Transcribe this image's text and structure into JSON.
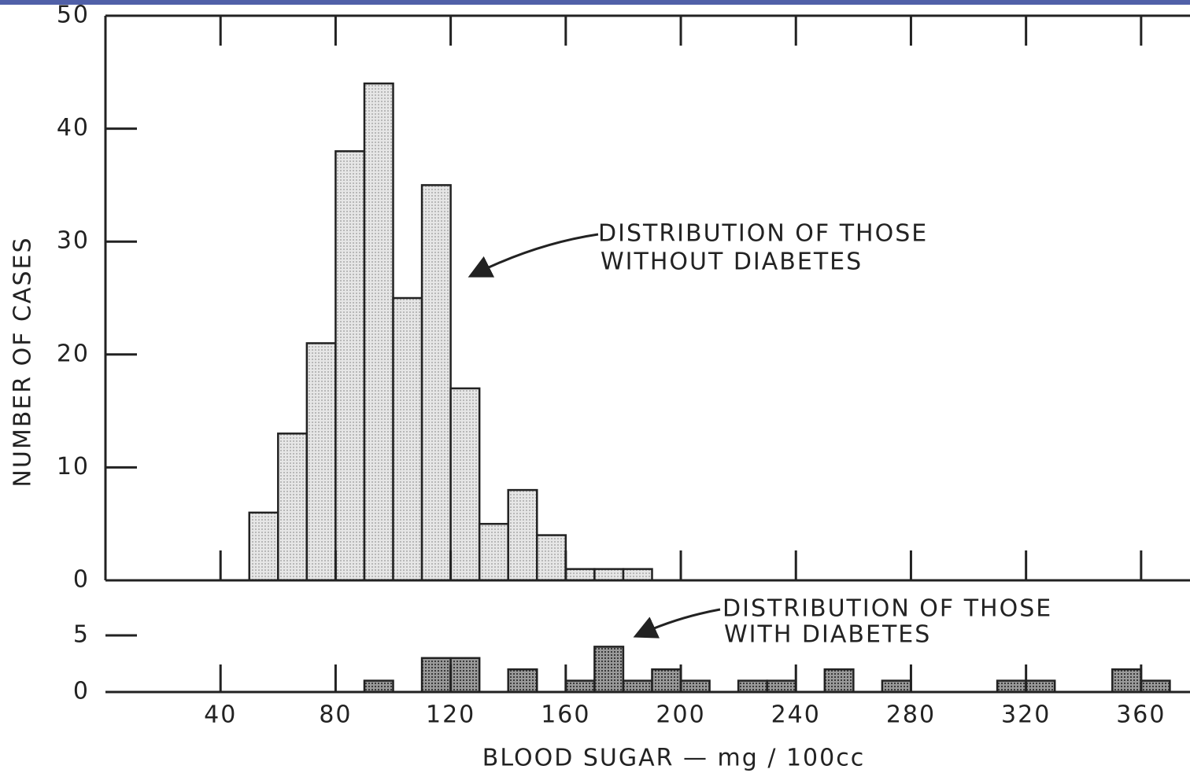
{
  "chart_data": [
    {
      "type": "histogram",
      "ylabel": "NUMBER OF CASES",
      "annotation": [
        "DISTRIBUTION OF THOSE",
        "WITHOUT DIABETES"
      ],
      "bins": [
        50,
        60,
        70,
        80,
        90,
        100,
        110,
        120,
        130,
        140,
        150,
        160,
        170,
        180,
        190
      ],
      "values": [
        6,
        13,
        21,
        38,
        44,
        25,
        35,
        17,
        5,
        8,
        4,
        1,
        1,
        1
      ],
      "color": "#d8d8d8",
      "xlim": [
        0,
        377
      ],
      "ylim": [
        0,
        50
      ],
      "yticks": [
        0,
        10,
        20,
        30,
        40,
        50
      ]
    },
    {
      "type": "histogram",
      "xlabel": "BLOOD SUGAR — mg / 100cc",
      "annotation": [
        "DISTRIBUTION OF THOSE",
        "WITH DIABETES"
      ],
      "bins": [
        50,
        60,
        70,
        80,
        90,
        100,
        110,
        120,
        130,
        140,
        150,
        160,
        170,
        180,
        190,
        200,
        210,
        220,
        230,
        240,
        250,
        260,
        270,
        280,
        290,
        300,
        310,
        320,
        330,
        340,
        350,
        360,
        370
      ],
      "values": [
        0,
        0,
        0,
        0,
        1,
        0,
        3,
        3,
        0,
        2,
        0,
        1,
        4,
        1,
        2,
        1,
        0,
        1,
        1,
        0,
        2,
        0,
        1,
        0,
        0,
        0,
        1,
        1,
        0,
        0,
        2,
        1
      ],
      "color": "#8a8a8a",
      "xlim": [
        0,
        377
      ],
      "ylim": [
        0,
        5
      ],
      "yticks": [
        0,
        5
      ],
      "xticks": [
        40,
        80,
        120,
        160,
        200,
        240,
        280,
        320,
        360
      ]
    }
  ]
}
